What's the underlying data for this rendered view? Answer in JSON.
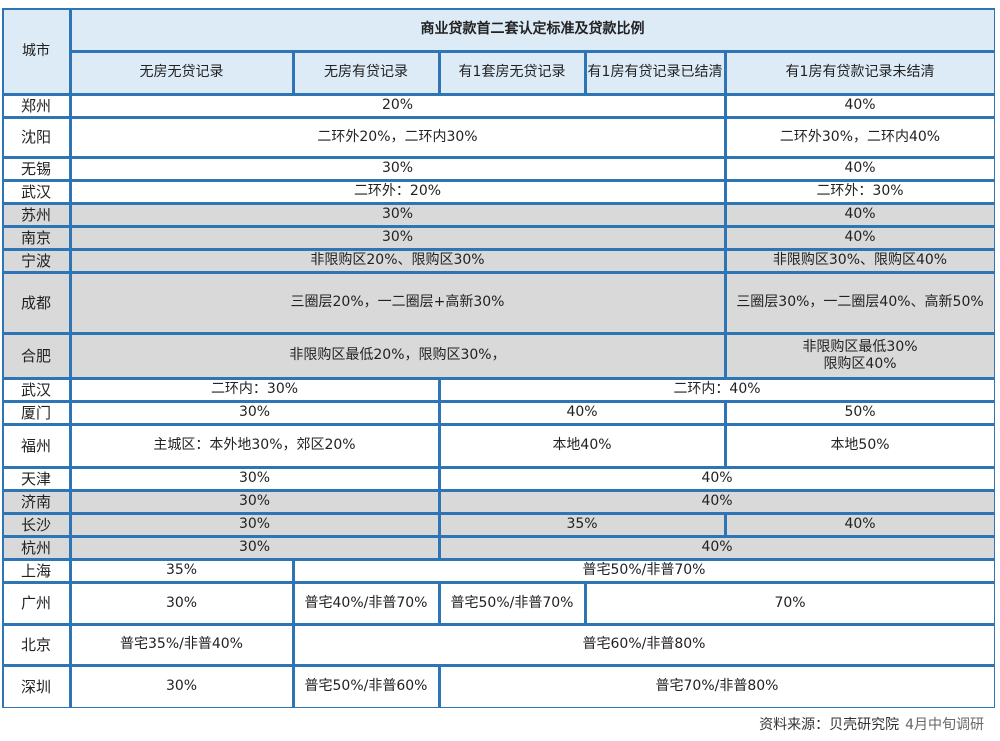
{
  "table": {
    "title": "商业贷款首二套认定标准及贷款比例",
    "city_header": "城市",
    "col_headers": [
      "无房无贷记录",
      "无房有贷记录",
      "有1套房无贷记录",
      "有1房有贷记录已结清",
      "有1房有贷款记录未结清"
    ],
    "colors": {
      "border": "#2e75b6",
      "header_bg": "#ddebf7",
      "gray_bg": "#d9d9d9"
    },
    "rows": [
      {
        "city": "郑州",
        "shade": "white",
        "cells": [
          {
            "text": "20%",
            "span": 4
          },
          {
            "text": "40%",
            "span": 1
          }
        ]
      },
      {
        "city": "沈阳",
        "shade": "white",
        "cells": [
          {
            "text": "二环外20%，二环内30%",
            "span": 4
          },
          {
            "text": "二环外30%，二环内40%",
            "span": 1
          }
        ]
      },
      {
        "city": "无锡",
        "shade": "white",
        "cells": [
          {
            "text": "30%",
            "span": 4
          },
          {
            "text": "40%",
            "span": 1
          }
        ]
      },
      {
        "city": "武汉",
        "shade": "white",
        "cells": [
          {
            "text": "二环外：20%",
            "span": 4
          },
          {
            "text": "二环外：30%",
            "span": 1
          }
        ]
      },
      {
        "city": "苏州",
        "shade": "gray",
        "cells": [
          {
            "text": "30%",
            "span": 4
          },
          {
            "text": "40%",
            "span": 1
          }
        ]
      },
      {
        "city": "南京",
        "shade": "gray",
        "cells": [
          {
            "text": "30%",
            "span": 4
          },
          {
            "text": "40%",
            "span": 1
          }
        ]
      },
      {
        "city": "宁波",
        "shade": "gray",
        "cells": [
          {
            "text": "非限购区20%、限购区30%",
            "span": 4
          },
          {
            "text": "非限购区30%、限购区40%",
            "span": 1
          }
        ]
      },
      {
        "city": "成都",
        "shade": "gray",
        "cells": [
          {
            "text": "三圈层20%，一二圈层+高新30%",
            "span": 4
          },
          {
            "text": "三圈层30%，一二圈层40%、高新50%",
            "span": 1
          }
        ]
      },
      {
        "city": "合肥",
        "shade": "gray",
        "cells": [
          {
            "text": "非限购区最低20%，限购区30%，",
            "span": 4
          },
          {
            "text": "非限购区最低30%\n限购区40%",
            "span": 1
          }
        ]
      },
      {
        "city": "武汉",
        "shade": "white",
        "cells": [
          {
            "text": "二环内：30%",
            "span": 2
          },
          {
            "text": "二环内：40%",
            "span": 3
          }
        ]
      },
      {
        "city": "厦门",
        "shade": "white",
        "cells": [
          {
            "text": "30%",
            "span": 2
          },
          {
            "text": "40%",
            "span": 2
          },
          {
            "text": "50%",
            "span": 1
          }
        ]
      },
      {
        "city": "福州",
        "shade": "white",
        "cells": [
          {
            "text": "主城区：本外地30%，郊区20%",
            "span": 2
          },
          {
            "text": "本地40%",
            "span": 2
          },
          {
            "text": "本地50%",
            "span": 1
          }
        ]
      },
      {
        "city": "天津",
        "shade": "white",
        "cells": [
          {
            "text": "30%",
            "span": 2
          },
          {
            "text": "40%",
            "span": 3
          }
        ]
      },
      {
        "city": "济南",
        "shade": "gray",
        "cells": [
          {
            "text": "30%",
            "span": 2
          },
          {
            "text": "40%",
            "span": 3
          }
        ]
      },
      {
        "city": "长沙",
        "shade": "gray",
        "cells": [
          {
            "text": "30%",
            "span": 2
          },
          {
            "text": "35%",
            "span": 2
          },
          {
            "text": "40%",
            "span": 1
          }
        ]
      },
      {
        "city": "杭州",
        "shade": "gray",
        "cells": [
          {
            "text": "30%",
            "span": 2
          },
          {
            "text": "40%",
            "span": 3
          }
        ]
      },
      {
        "city": "上海",
        "shade": "white",
        "cells": [
          {
            "text": "35%",
            "span": 1
          },
          {
            "text": "普宅50%/非普70%",
            "span": 4
          }
        ]
      },
      {
        "city": "广州",
        "shade": "white",
        "cells": [
          {
            "text": "30%",
            "span": 1
          },
          {
            "text": "普宅40%/非普70%",
            "span": 1
          },
          {
            "text": "普宅50%/非普70%",
            "span": 1
          },
          {
            "text": "70%",
            "span": 2
          }
        ]
      },
      {
        "city": "北京",
        "shade": "white",
        "cells": [
          {
            "text": "普宅35%/非普40%",
            "span": 1
          },
          {
            "text": "普宅60%/非普80%",
            "span": 4
          }
        ]
      },
      {
        "city": "深圳",
        "shade": "white",
        "cells": [
          {
            "text": "30%",
            "span": 1
          },
          {
            "text": "普宅50%/非普60%",
            "span": 1
          },
          {
            "text": "普宅70%/非普80%",
            "span": 3
          }
        ]
      }
    ]
  },
  "footer": {
    "source": "资料来源：贝壳研究院",
    "note": "4月中旬调研"
  }
}
